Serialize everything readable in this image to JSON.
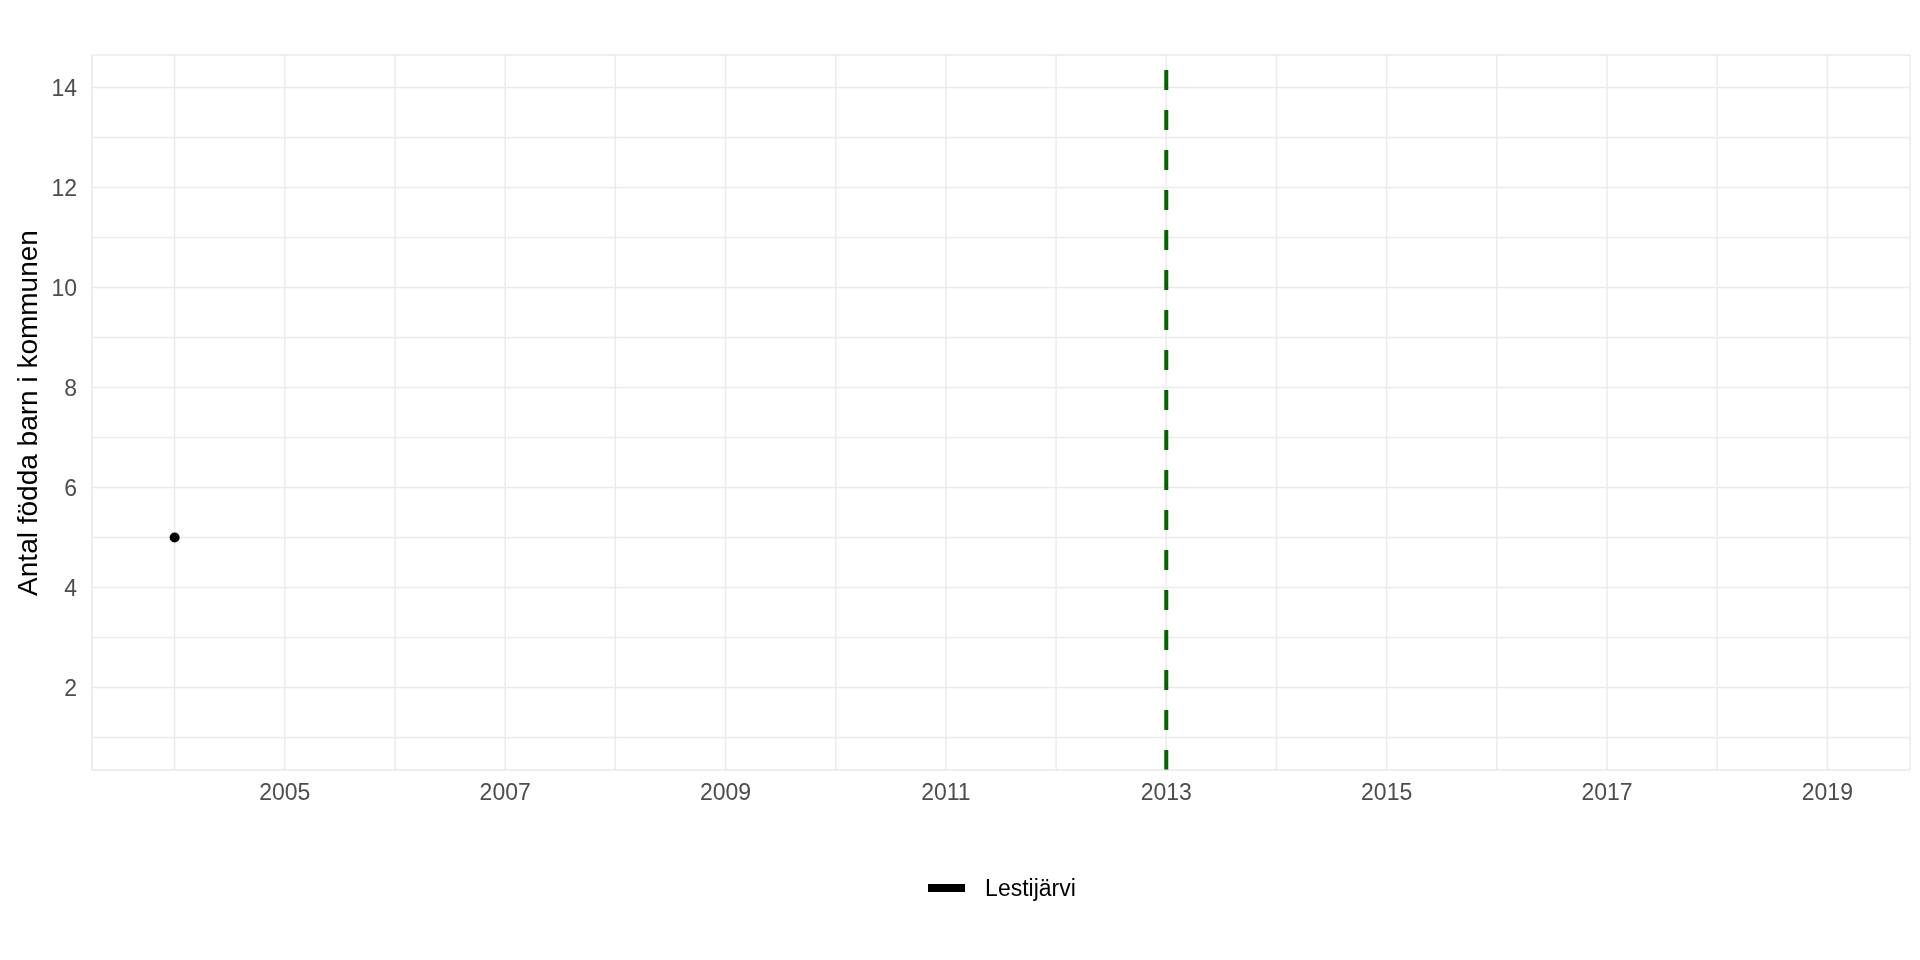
{
  "chart_data": {
    "type": "line",
    "ylabel": "Antal födda barn i kommunen",
    "series": [
      {
        "name": "Lestijärvi",
        "color": "#000000",
        "x": [
          2004
        ],
        "values": [
          5
        ]
      }
    ],
    "xlim": [
      2003.25,
      2019.75
    ],
    "xticks": [
      {
        "value": 2004,
        "label": null
      },
      2005,
      {
        "value": 2006,
        "label": null
      },
      2007,
      {
        "value": 2008,
        "label": null
      },
      2009,
      {
        "value": 2010,
        "label": null
      },
      2011,
      {
        "value": 2012,
        "label": null
      },
      2013,
      {
        "value": 2014,
        "label": null
      },
      2015,
      {
        "value": 2016,
        "label": null
      },
      2017,
      {
        "value": 2018,
        "label": null
      },
      2019
    ],
    "ylim": [
      0.35,
      14.65
    ],
    "yticks": [
      {
        "value": 1,
        "label": null
      },
      2,
      {
        "value": 3,
        "label": null
      },
      4,
      {
        "value": 5,
        "label": null
      },
      6,
      {
        "value": 7,
        "label": null
      },
      8,
      {
        "value": 9,
        "label": null
      },
      10,
      {
        "value": 11,
        "label": null
      },
      12,
      {
        "value": 13,
        "label": null
      },
      14
    ],
    "ref_lines": [
      {
        "axis": "x",
        "value": 2013,
        "color": "#006400",
        "line_style": "dashed"
      }
    ],
    "grid": true,
    "legend": "bottom",
    "marker": "circle"
  }
}
